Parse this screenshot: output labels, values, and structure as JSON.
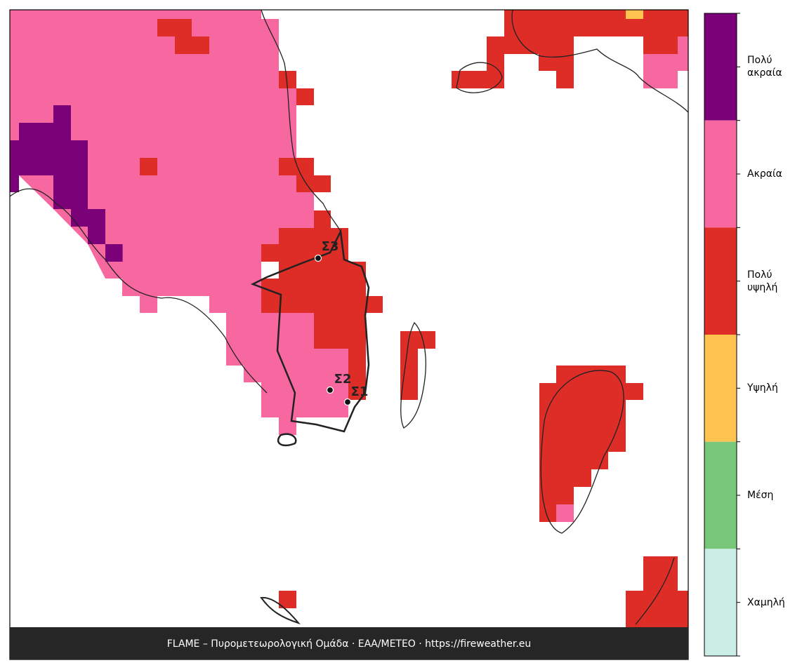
{
  "map": {
    "stations": [
      {
        "label": "Σ1"
      },
      {
        "label": "Σ2"
      },
      {
        "label": "Σ3"
      }
    ],
    "footer": "FLAME – Πυρομετεωρολογική Ομάδα · ΕΑΑ/METEO · https://fireweather.eu",
    "legend": {
      "classes": [
        {
          "label": "Πολύ ακραία",
          "color": "#7a0177"
        },
        {
          "label": "Ακραία",
          "color": "#f768a1"
        },
        {
          "label": "Πολύ υψηλή",
          "color": "#de2d26"
        },
        {
          "label": "Υψηλή",
          "color": "#fec44f"
        },
        {
          "label": "Μέση",
          "color": "#78c679"
        },
        {
          "label": "Χαμηλή",
          "color": "#ccece6"
        }
      ]
    }
  }
}
